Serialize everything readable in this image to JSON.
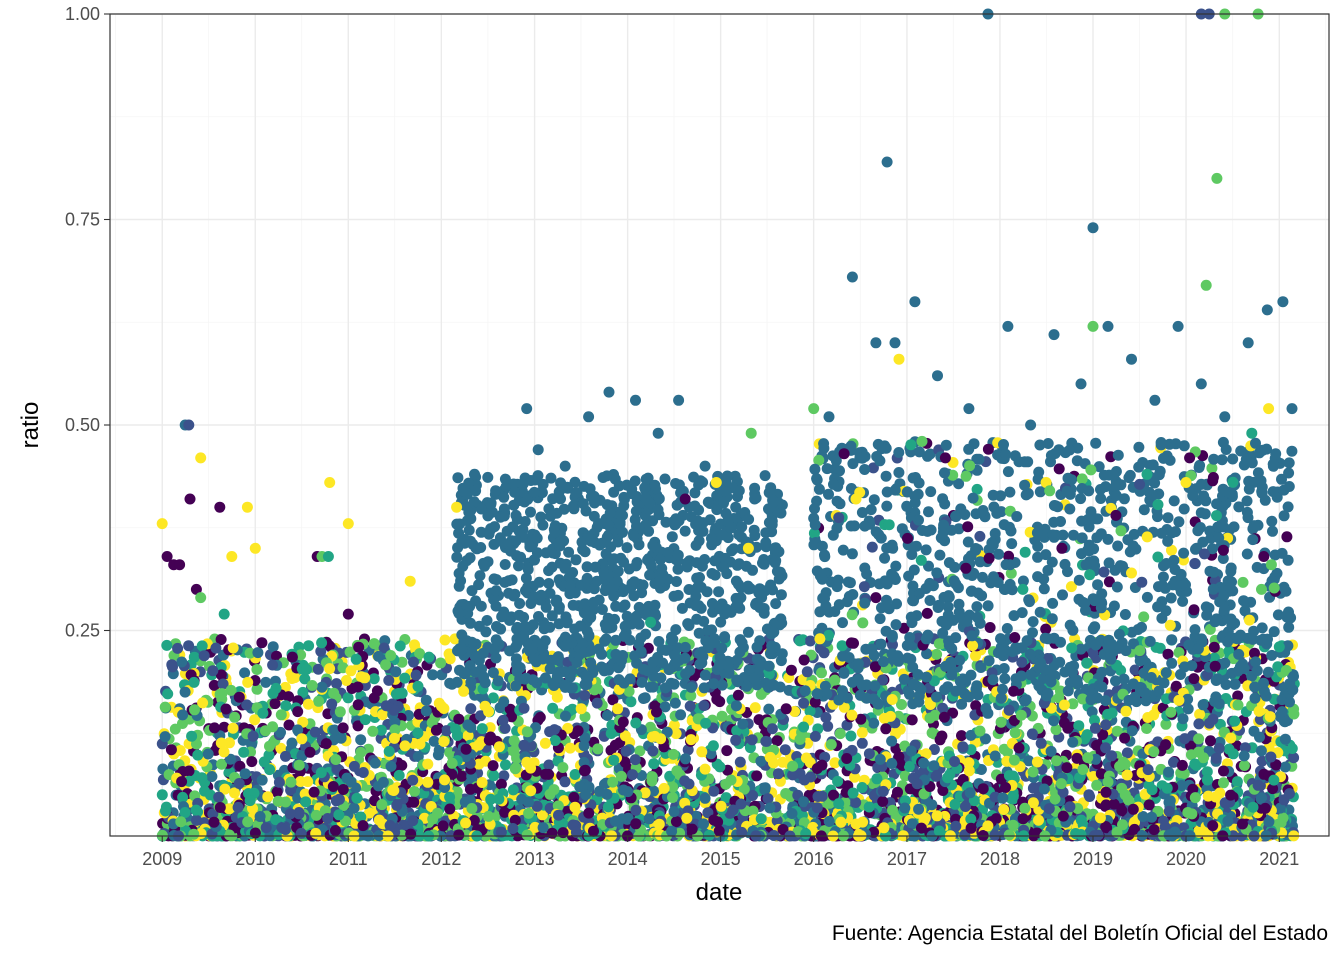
{
  "chart_data": {
    "type": "scatter",
    "title": "",
    "xlabel": "date",
    "ylabel": "ratio",
    "caption": "Fuente: Agencia Estatal del Boletín Oficial del Estado",
    "xlim": [
      "2008-06-10",
      "2021-07-15"
    ],
    "ylim": [
      0.0,
      1.0
    ],
    "x_ticks": [
      "2009",
      "2010",
      "2011",
      "2012",
      "2013",
      "2014",
      "2015",
      "2016",
      "2017",
      "2018",
      "2019",
      "2020",
      "2021"
    ],
    "y_ticks": [
      "0.25",
      "0.50",
      "0.75",
      "1.00"
    ],
    "grid": true,
    "legend": "none",
    "colors": {
      "purple": "#440154",
      "indigo": "#3b528b",
      "teal": "#2c6e8e",
      "green": "#21a585",
      "lime": "#5ec962",
      "yellow": "#fde725"
    },
    "series": [
      {
        "color": "#2c6e8e",
        "x": [
          "2009-04-01",
          "2012-05-10",
          "2012-08-01",
          "2012-12-01",
          "2013-01-15",
          "2013-05-01",
          "2013-08-01",
          "2013-10-20",
          "2014-02-01",
          "2014-05-01",
          "2014-07-20",
          "2014-11-01",
          "2015-03-01",
          "2015-08-01",
          "2016-03-01",
          "2016-06-01",
          "2016-09-01",
          "2016-10-15",
          "2016-11-15",
          "2017-02-01",
          "2017-05-01",
          "2017-09-01",
          "2017-11-15",
          "2018-02-01",
          "2018-05-01",
          "2018-08-01",
          "2018-11-15",
          "2019-01-01",
          "2019-03-01",
          "2019-06-01",
          "2019-09-01",
          "2019-12-01",
          "2020-03-01",
          "2020-06-01",
          "2020-09-01",
          "2020-11-15",
          "2021-01-15",
          "2021-02-20"
        ],
        "y": [
          0.5,
          0.44,
          0.42,
          0.52,
          0.47,
          0.45,
          0.51,
          0.54,
          0.53,
          0.49,
          0.53,
          0.45,
          0.4,
          0.35,
          0.51,
          0.68,
          0.6,
          0.82,
          0.6,
          0.65,
          0.56,
          0.52,
          1.0,
          0.62,
          0.5,
          0.61,
          0.55,
          0.74,
          0.62,
          0.58,
          0.53,
          0.62,
          0.55,
          0.51,
          0.6,
          0.64,
          0.65,
          0.52
        ]
      },
      {
        "color": "#440154",
        "x": [
          "2009-01-20",
          "2009-02-15",
          "2009-03-10",
          "2009-04-20",
          "2009-05-15",
          "2009-08-15",
          "2010-09-01",
          "2011-01-01",
          "2014-08-15",
          "2016-09-01",
          "2017-06-01",
          "2018-09-01",
          "2019-04-01",
          "2020-01-15",
          "2020-11-01"
        ],
        "y": [
          0.34,
          0.33,
          0.33,
          0.41,
          0.3,
          0.4,
          0.34,
          0.27,
          0.41,
          0.29,
          0.46,
          0.35,
          0.39,
          0.46,
          0.34
        ]
      },
      {
        "color": "#fde725",
        "x": [
          "2009-01-01",
          "2009-06-01",
          "2009-10-01",
          "2009-12-01",
          "2010-01-01",
          "2010-10-20",
          "2011-01-01",
          "2011-09-01",
          "2012-03-01",
          "2014-12-15",
          "2015-04-20",
          "2016-06-15",
          "2016-12-01",
          "2018-07-01",
          "2019-06-01",
          "2020-01-01",
          "2020-11-20"
        ],
        "y": [
          0.38,
          0.46,
          0.34,
          0.4,
          0.35,
          0.43,
          0.38,
          0.31,
          0.4,
          0.43,
          0.35,
          0.41,
          0.58,
          0.43,
          0.32,
          0.43,
          0.52
        ]
      },
      {
        "color": "#5ec962",
        "x": [
          "2009-06-01",
          "2010-09-20",
          "2015-05-01",
          "2016-01-01",
          "2017-03-01",
          "2018-07-15",
          "2019-01-01",
          "2020-03-20",
          "2020-05-01",
          "2020-06-01",
          "2020-10-10",
          "2020-12-01"
        ],
        "y": [
          0.29,
          0.34,
          0.49,
          0.52,
          0.48,
          0.42,
          0.62,
          0.67,
          0.8,
          1.0,
          1.0,
          0.33
        ]
      },
      {
        "color": "#21a585",
        "x": [
          "2009-09-01",
          "2010-10-15",
          "2014-04-01",
          "2018-04-01",
          "2019-08-01",
          "2020-09-15",
          "2021-01-01"
        ],
        "y": [
          0.27,
          0.34,
          0.26,
          0.3,
          0.44,
          0.49,
          0.23
        ]
      },
      {
        "color": "#3b528b",
        "x": [
          "2009-04-15",
          "2020-03-01",
          "2020-04-01"
        ],
        "y": [
          0.5,
          1.0,
          1.0
        ]
      }
    ]
  }
}
